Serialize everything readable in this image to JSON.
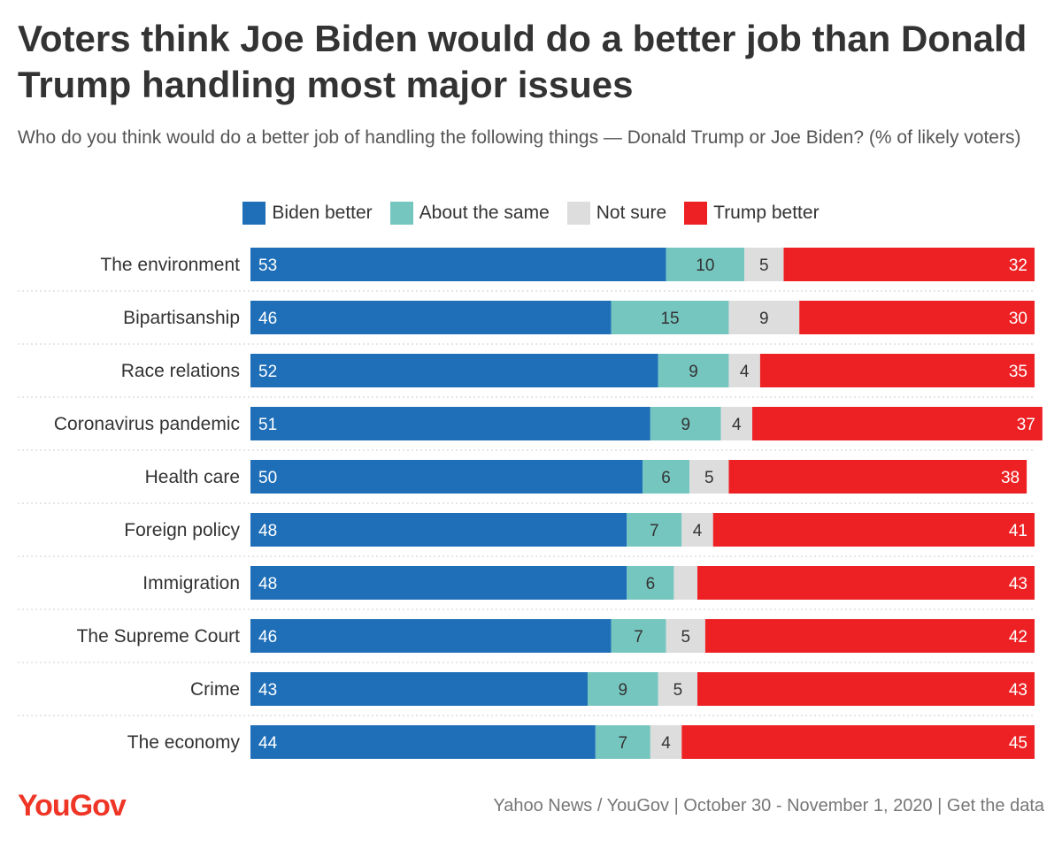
{
  "title": "Voters think Joe Biden would do a better job than Donald Trump handling most major issues",
  "subtitle": "Who do you think would do a better job of handling the following things — Donald Trump or Joe Biden? (% of likely voters)",
  "colors": {
    "biden": "#1f6fb8",
    "same": "#76c6c0",
    "not_sure": "#dddddd",
    "trump": "#ed2124",
    "separator": "#cccccc"
  },
  "legend": [
    {
      "label": "Biden better",
      "color": "#1f6fb8"
    },
    {
      "label": "About the same",
      "color": "#76c6c0"
    },
    {
      "label": "Not sure",
      "color": "#dddddd"
    },
    {
      "label": "Trump better",
      "color": "#ed2124"
    }
  ],
  "chart_data": {
    "type": "bar",
    "orientation": "horizontal",
    "stacked": true,
    "categories": [
      "The environment",
      "Bipartisanship",
      "Race relations",
      "Coronavirus pandemic",
      "Health care",
      "Foreign policy",
      "Immigration",
      "The Supreme Court",
      "Crime",
      "The economy"
    ],
    "series": [
      {
        "name": "Biden better",
        "values": [
          53,
          46,
          52,
          51,
          50,
          48,
          48,
          46,
          43,
          44
        ]
      },
      {
        "name": "About the same",
        "values": [
          10,
          15,
          9,
          9,
          6,
          7,
          6,
          7,
          9,
          7
        ]
      },
      {
        "name": "Not sure",
        "values": [
          5,
          9,
          4,
          4,
          5,
          4,
          3,
          5,
          5,
          4
        ]
      },
      {
        "name": "Trump better",
        "values": [
          32,
          30,
          35,
          37,
          38,
          41,
          43,
          42,
          43,
          45
        ]
      }
    ],
    "value_labels": [
      [
        "53",
        "10",
        "5",
        "32"
      ],
      [
        "46",
        "15",
        "9",
        "30"
      ],
      [
        "52",
        "9",
        "4",
        "35"
      ],
      [
        "51",
        "9",
        "4",
        "37"
      ],
      [
        "50",
        "6",
        "5",
        "38"
      ],
      [
        "48",
        "7",
        "4",
        "41"
      ],
      [
        "48",
        "6",
        "",
        "43"
      ],
      [
        "46",
        "7",
        "5",
        "42"
      ],
      [
        "43",
        "9",
        "5",
        "43"
      ],
      [
        "44",
        "7",
        "4",
        "45"
      ]
    ],
    "xlim": [
      0,
      100
    ]
  },
  "footer": {
    "logo": "YouGov",
    "source": "Yahoo News / YouGov | October 30 - November 1, 2020 | Get the data"
  }
}
